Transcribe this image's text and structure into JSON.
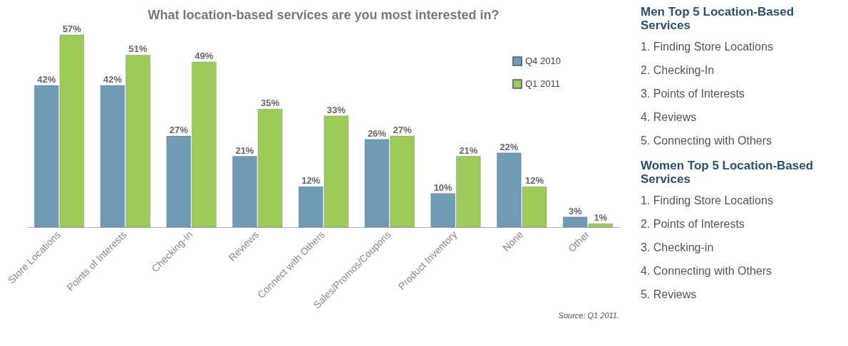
{
  "chart_data": [
    {
      "type": "bar",
      "title": "What location-based services are you most interested in?",
      "categories": [
        "Store Locations",
        "Points of Interests",
        "Checking-In",
        "Reviews",
        "Connect with Others",
        "Sales/Promos/Coupons",
        "Product Inventory",
        "None",
        "Other"
      ],
      "series": [
        {
          "name": "Q4 2010",
          "color": "#6f9bb5",
          "values": [
            42,
            42,
            27,
            21,
            12,
            26,
            10,
            22,
            3
          ],
          "value_labels": [
            "42%",
            "42%",
            "27%",
            "21%",
            "12%",
            "26%",
            "10%",
            "22%",
            "3%"
          ]
        },
        {
          "name": "Q1 2011",
          "color": "#9dcb5a",
          "values": [
            57,
            51,
            49,
            35,
            33,
            27,
            21,
            12,
            1
          ],
          "value_labels": [
            "57%",
            "51%",
            "49%",
            "35%",
            "33%",
            "27%",
            "21%",
            "12%",
            "1%"
          ]
        }
      ],
      "legend": "top right",
      "tick_labels": "x",
      "annotations": [
        "Source: Q1 2011."
      ]
    },
    {
      "type": "other",
      "title": "Men Top 5 Location-Based Services",
      "annotations": [
        "1. Finding Store Locations",
        "2. Checking-In",
        "3. Points of Interests",
        "4. Reviews",
        "5. Connecting with Others"
      ]
    },
    {
      "type": "other",
      "title": "Women Top 5 Location-Based Services",
      "annotations": [
        "1. Finding Store Locations",
        "2. Points of Interests",
        "3. Checking-in",
        "4. Connecting with Others",
        "5. Reviews"
      ]
    }
  ]
}
